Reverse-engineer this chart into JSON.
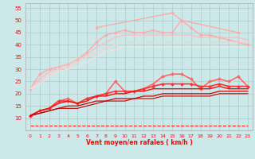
{
  "xlabel": "Vent moyen/en rafales ( km/h )",
  "background_color": "#cce8e8",
  "grid_color": "#aacccc",
  "x": [
    0,
    1,
    2,
    3,
    4,
    5,
    6,
    7,
    8,
    9,
    10,
    11,
    12,
    13,
    14,
    15,
    16,
    17,
    18,
    19,
    20,
    21,
    22,
    23
  ],
  "ylim": [
    5,
    57
  ],
  "xlim": [
    -0.5,
    23.5
  ],
  "yticks": [
    10,
    15,
    20,
    25,
    30,
    35,
    40,
    45,
    50,
    55
  ],
  "series": [
    {
      "color": "#ffaaaa",
      "linewidth": 1.0,
      "marker": "D",
      "markersize": 2.0,
      "linestyle": "-",
      "values": [
        22,
        28,
        30,
        31,
        32,
        34,
        37,
        41,
        44,
        45,
        46,
        45,
        45,
        46,
        45,
        45,
        50,
        47,
        44,
        44,
        43,
        42,
        41,
        40
      ]
    },
    {
      "color": "#ffaaaa",
      "linewidth": 1.0,
      "marker": "D",
      "markersize": 2.0,
      "linestyle": "-",
      "values": [
        null,
        null,
        null,
        null,
        null,
        null,
        null,
        47,
        null,
        null,
        null,
        null,
        null,
        null,
        null,
        53,
        50,
        null,
        null,
        null,
        null,
        null,
        45,
        null
      ]
    },
    {
      "color": "#ffbbbb",
      "linewidth": 0.9,
      "marker": null,
      "markersize": 0,
      "linestyle": "-",
      "values": [
        22,
        26,
        29,
        31,
        32,
        34,
        36,
        39,
        41,
        43,
        44,
        44,
        44,
        44,
        44,
        44,
        44,
        44,
        43,
        43,
        43,
        43,
        43,
        42
      ]
    },
    {
      "color": "#ffcccc",
      "linewidth": 0.9,
      "marker": null,
      "markersize": 0,
      "linestyle": "-",
      "values": [
        22,
        25,
        28,
        30,
        31,
        33,
        35,
        37,
        39,
        40,
        41,
        41,
        41,
        41,
        41,
        41,
        41,
        41,
        41,
        41,
        41,
        41,
        41,
        41
      ]
    },
    {
      "color": "#ffdddd",
      "linewidth": 0.8,
      "marker": null,
      "markersize": 0,
      "linestyle": "-",
      "values": [
        22,
        24,
        27,
        29,
        30,
        31,
        33,
        35,
        37,
        38,
        39,
        39,
        39,
        39,
        39,
        39,
        39,
        39,
        39,
        39,
        39,
        39,
        39,
        39
      ]
    },
    {
      "color": "#ff6666",
      "linewidth": 1.2,
      "marker": "D",
      "markersize": 2.0,
      "linestyle": "-",
      "values": [
        11,
        13,
        14,
        17,
        18,
        16,
        18,
        19,
        20,
        25,
        21,
        21,
        22,
        24,
        27,
        28,
        28,
        26,
        22,
        25,
        26,
        25,
        27,
        23
      ]
    },
    {
      "color": "#ff3333",
      "linewidth": 1.2,
      "marker": "D",
      "markersize": 2.0,
      "linestyle": "-",
      "values": [
        11,
        13,
        14,
        17,
        17,
        16,
        18,
        19,
        20,
        21,
        21,
        21,
        22,
        23,
        24,
        24,
        24,
        24,
        23,
        23,
        24,
        23,
        23,
        23
      ]
    },
    {
      "color": "#ee1111",
      "linewidth": 1.0,
      "marker": null,
      "markersize": 0,
      "linestyle": "-",
      "values": [
        11,
        13,
        14,
        16,
        17,
        16,
        17,
        19,
        19,
        20,
        20,
        21,
        21,
        22,
        22,
        22,
        22,
        22,
        22,
        22,
        23,
        22,
        22,
        22
      ]
    },
    {
      "color": "#cc0000",
      "linewidth": 0.9,
      "marker": null,
      "markersize": 0,
      "linestyle": "-",
      "values": [
        11,
        12,
        13,
        14,
        15,
        15,
        16,
        17,
        17,
        18,
        18,
        18,
        19,
        19,
        20,
        20,
        20,
        20,
        20,
        20,
        21,
        21,
        21,
        21
      ]
    },
    {
      "color": "#bb0000",
      "linewidth": 0.8,
      "marker": null,
      "markersize": 0,
      "linestyle": "-",
      "values": [
        11,
        12,
        13,
        14,
        14,
        14,
        15,
        16,
        17,
        17,
        17,
        18,
        18,
        18,
        19,
        19,
        19,
        19,
        19,
        19,
        20,
        20,
        20,
        20
      ]
    },
    {
      "color": "#ff2222",
      "linewidth": 0.8,
      "marker": null,
      "markersize": 0,
      "linestyle": "--",
      "values": [
        7,
        7,
        7,
        7,
        7,
        7,
        7,
        7,
        7,
        7,
        7,
        7,
        7,
        7,
        7,
        7,
        7,
        7,
        7,
        7,
        7,
        7,
        7,
        7
      ]
    }
  ]
}
